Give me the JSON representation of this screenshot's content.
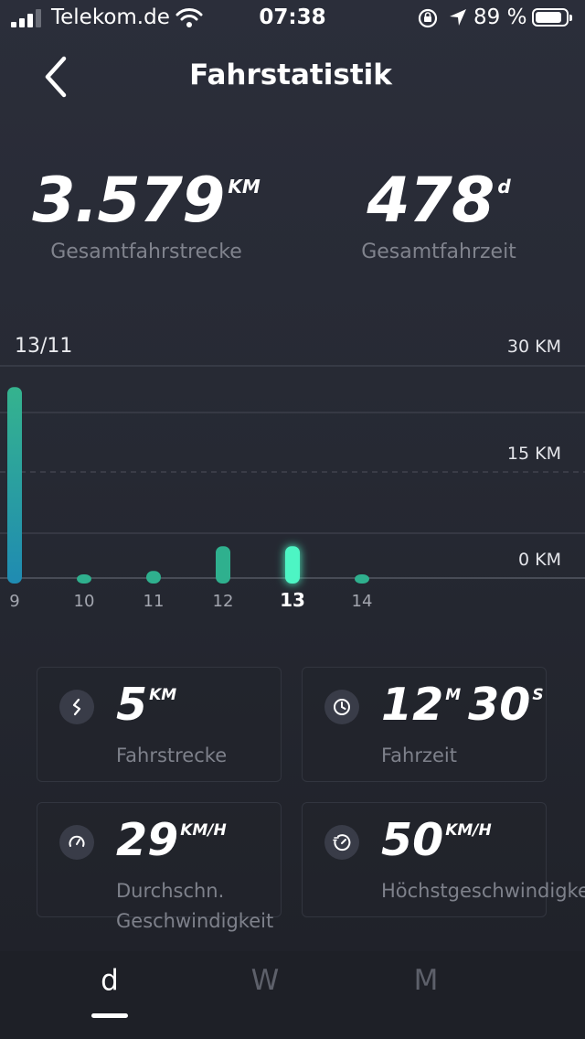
{
  "status_bar": {
    "carrier": "Telekom.de",
    "time": "07:38",
    "battery_percent": "89 %",
    "battery_level": 0.89,
    "signal_bars": 3
  },
  "header": {
    "title": "Fahrstatistik",
    "back_icon": "chevron-left-icon"
  },
  "totals": {
    "distance_value": "3.579",
    "distance_unit": "KM",
    "distance_label": "Gesamtfahrstrecke",
    "time_value": "478",
    "time_unit": "d",
    "time_label": "Gesamtfahrzeit"
  },
  "chart_data": {
    "type": "bar",
    "selected_label": "13/11",
    "categories": [
      "9",
      "10",
      "11",
      "12",
      "13",
      "14"
    ],
    "values": [
      27,
      0.3,
      1,
      4.5,
      4.5,
      0.3
    ],
    "selected_index": 4,
    "y_tick_labels": [
      "30 KM",
      "15 KM",
      "0 KM"
    ],
    "grid": true,
    "colors": {
      "bar": "#2fb08e",
      "bar_start": "#1f8fb0",
      "selected": "#4ef5c4"
    }
  },
  "cards": [
    {
      "icon": "route-icon",
      "values": [
        {
          "num": "5",
          "unit": "KM"
        }
      ],
      "label": "Fahrstrecke"
    },
    {
      "icon": "clock-icon",
      "values": [
        {
          "num": "12",
          "unit": "M"
        },
        {
          "num": "30",
          "unit": "S"
        }
      ],
      "label": "Fahrzeit"
    },
    {
      "icon": "speedometer-icon",
      "values": [
        {
          "num": "29",
          "unit": "KM/H"
        }
      ],
      "label": "Durchschn. Geschwindigkeit"
    },
    {
      "icon": "max-speed-icon",
      "values": [
        {
          "num": "50",
          "unit": "KM/H"
        }
      ],
      "label": "Höchstgeschwindigkeit"
    }
  ],
  "tabs": [
    {
      "label": "d",
      "active": true
    },
    {
      "label": "W",
      "active": false
    },
    {
      "label": "M",
      "active": false
    }
  ]
}
